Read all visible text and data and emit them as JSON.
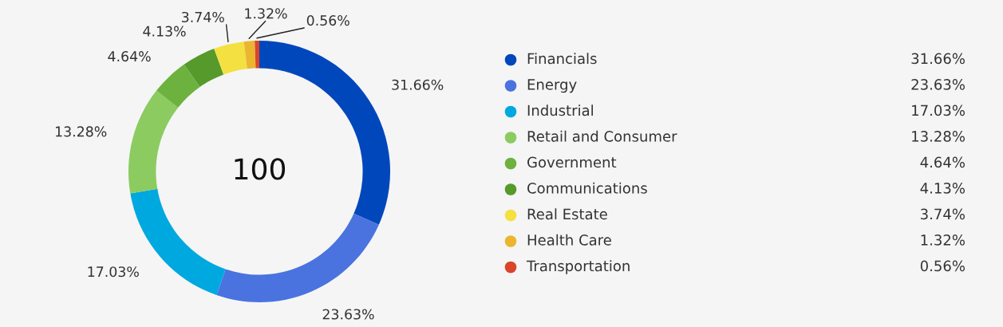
{
  "chart_data": {
    "type": "donut",
    "categories": [
      "Financials",
      "Energy",
      "Industrial",
      "Retail and Consumer",
      "Government",
      "Communications",
      "Real Estate",
      "Health Care",
      "Transportation"
    ],
    "values": [
      31.66,
      23.63,
      17.03,
      13.28,
      4.64,
      4.13,
      3.74,
      1.32,
      0.56
    ],
    "value_labels": [
      "31.66%",
      "23.63%",
      "17.03%",
      "13.28%",
      "4.64%",
      "4.13%",
      "3.74%",
      "1.32%",
      "0.56%"
    ],
    "colors": [
      "#0047bb",
      "#4a73e0",
      "#00a8e0",
      "#8ccb60",
      "#6db23f",
      "#559a2a",
      "#f4e040",
      "#ebb530",
      "#d9452a"
    ],
    "annotations": [
      "100"
    ],
    "legend": "right"
  }
}
